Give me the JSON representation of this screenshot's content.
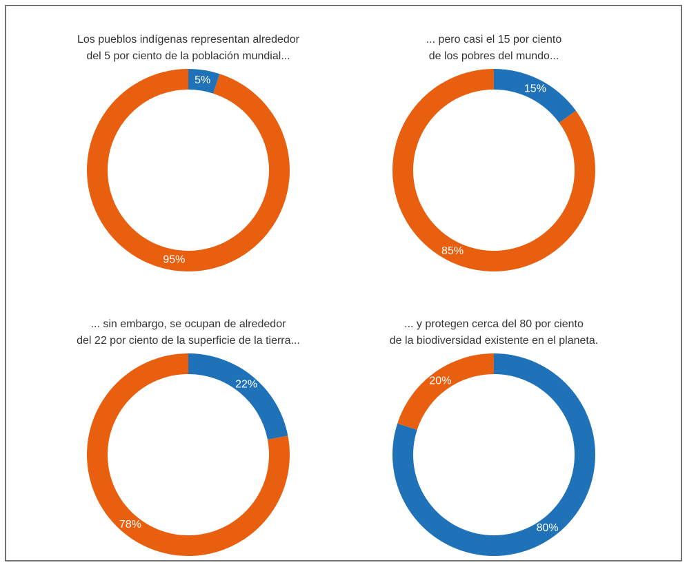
{
  "chart_data": [
    {
      "type": "pie",
      "donut": true,
      "title": [
        "Los pueblos indígenas representan alrededor",
        "del 5 por ciento de la población mundial..."
      ],
      "values": [
        5,
        95
      ],
      "value_labels": [
        "5%",
        "95%"
      ],
      "colors": [
        "#1f72b8",
        "#e8600f"
      ]
    },
    {
      "type": "pie",
      "donut": true,
      "title": [
        "... pero casi el 15 por ciento",
        "de los pobres del mundo..."
      ],
      "values": [
        15,
        85
      ],
      "value_labels": [
        "15%",
        "85%"
      ],
      "colors": [
        "#1f72b8",
        "#e8600f"
      ]
    },
    {
      "type": "pie",
      "donut": true,
      "title": [
        "... sin embargo, se ocupan de alrededor",
        "del 22 por ciento de la superficie de la tierra..."
      ],
      "values": [
        22,
        78
      ],
      "value_labels": [
        "22%",
        "78%"
      ],
      "colors": [
        "#1f72b8",
        "#e8600f"
      ]
    },
    {
      "type": "pie",
      "donut": true,
      "title": [
        "... y protegen cerca del 80 por ciento",
        "de la biodiversidad existente en el planeta."
      ],
      "values": [
        80,
        20
      ],
      "value_labels": [
        "80%",
        "20%"
      ],
      "colors": [
        "#1f72b8",
        "#e8600f"
      ]
    }
  ]
}
